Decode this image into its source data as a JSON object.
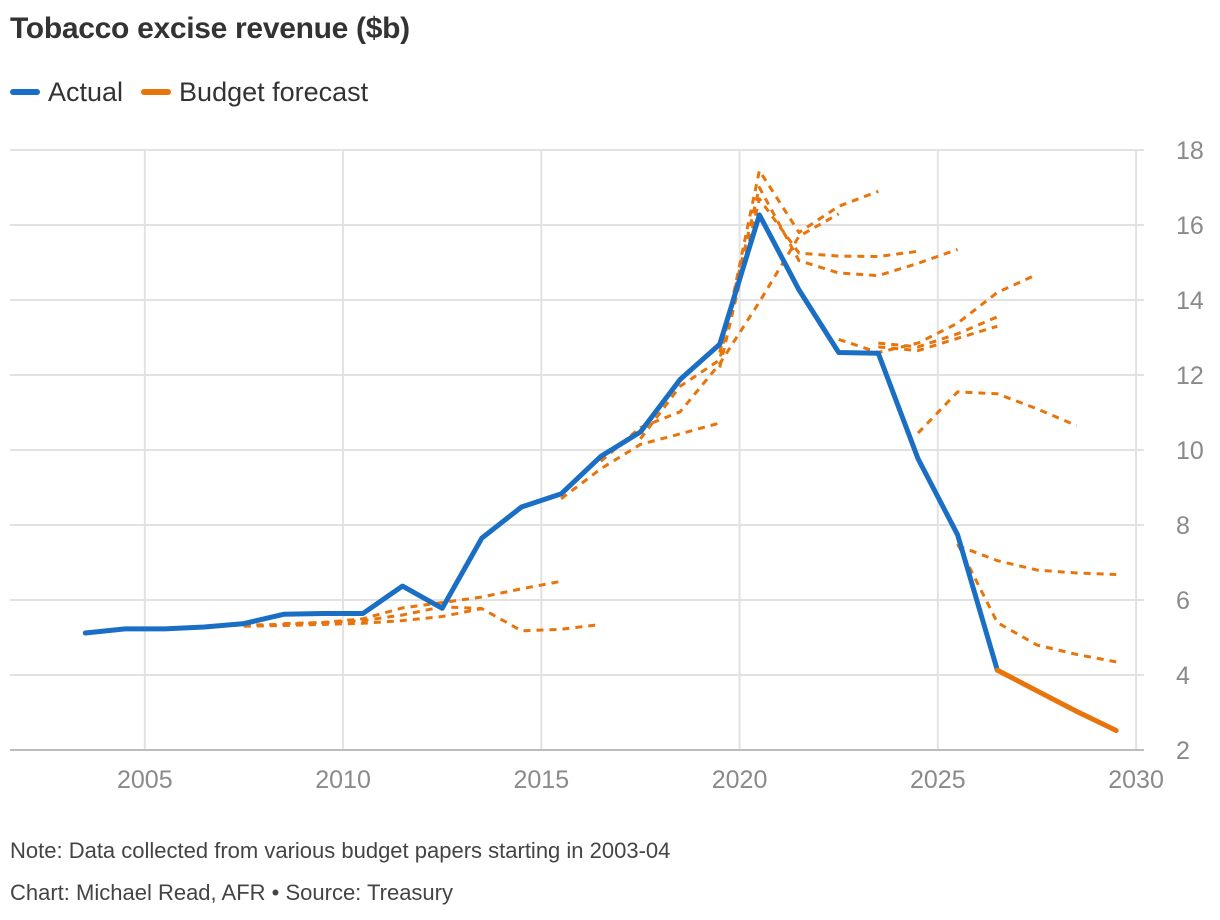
{
  "title": "Tobacco excise revenue ($b)",
  "legend": [
    {
      "label": "Actual",
      "color": "#1a6fc4"
    },
    {
      "label": "Budget forecast",
      "color": "#e8740c"
    }
  ],
  "note": "Note: Data collected from various budget papers starting in 2003-04",
  "credit": "Chart: Michael Read, AFR • Source: Treasury",
  "chart_data": {
    "type": "line",
    "title": "Tobacco excise revenue ($b)",
    "xlabel": "",
    "ylabel": "",
    "xlim": [
      2001.6,
      2030.2
    ],
    "ylim": [
      2,
      18
    ],
    "x_ticks": [
      2005,
      2010,
      2015,
      2020,
      2025,
      2030
    ],
    "y_ticks": [
      2,
      4,
      6,
      8,
      10,
      12,
      14,
      16,
      18
    ],
    "y_axis_side": "right",
    "grid": true,
    "legend_position": "top-left",
    "series": [
      {
        "name": "Actual",
        "color": "#1a6fc4",
        "style": "solid",
        "points": [
          [
            2003.5,
            5.12
          ],
          [
            2004.5,
            5.23
          ],
          [
            2005.5,
            5.23
          ],
          [
            2006.5,
            5.28
          ],
          [
            2007.5,
            5.37
          ],
          [
            2008.5,
            5.62
          ],
          [
            2009.5,
            5.64
          ],
          [
            2010.5,
            5.64
          ],
          [
            2011.5,
            6.37
          ],
          [
            2012.5,
            5.78
          ],
          [
            2013.5,
            7.65
          ],
          [
            2014.5,
            8.48
          ],
          [
            2015.5,
            8.83
          ],
          [
            2016.5,
            9.83
          ],
          [
            2017.5,
            10.48
          ],
          [
            2018.5,
            11.88
          ],
          [
            2019.5,
            12.82
          ],
          [
            2020.5,
            16.27
          ],
          [
            2021.5,
            14.27
          ],
          [
            2022.5,
            12.6
          ],
          [
            2023.5,
            12.58
          ],
          [
            2024.5,
            9.77
          ],
          [
            2025.5,
            7.74
          ],
          [
            2026.5,
            4.13
          ]
        ]
      },
      {
        "name": "Budget forecast",
        "color": "#e8740c",
        "style": "solid",
        "points": [
          [
            2026.5,
            4.13
          ],
          [
            2027.5,
            3.58
          ],
          [
            2028.5,
            3.03
          ],
          [
            2029.5,
            2.52
          ]
        ]
      }
    ],
    "forecast_vintages": [
      {
        "color": "#e8740c",
        "style": "dashed",
        "points": [
          [
            2006.5,
            5.3
          ],
          [
            2007.5,
            5.33
          ],
          [
            2008.5,
            5.35
          ],
          [
            2009.5,
            5.4
          ],
          [
            2010.5,
            5.5
          ],
          [
            2011.5,
            5.79
          ],
          [
            2012.5,
            5.93
          ],
          [
            2013.5,
            6.08
          ],
          [
            2014.5,
            6.3
          ],
          [
            2015.5,
            6.5
          ]
        ]
      },
      {
        "color": "#e8740c",
        "style": "dashed",
        "points": [
          [
            2008.5,
            5.37
          ],
          [
            2009.5,
            5.4
          ],
          [
            2010.5,
            5.45
          ],
          [
            2011.5,
            5.6
          ],
          [
            2012.5,
            5.82
          ],
          [
            2013.5,
            5.77
          ],
          [
            2014.5,
            5.18
          ],
          [
            2015.5,
            5.22
          ],
          [
            2016.5,
            5.35
          ]
        ]
      },
      {
        "color": "#e8740c",
        "style": "dashed",
        "points": [
          [
            2007.5,
            5.3
          ],
          [
            2008.5,
            5.32
          ],
          [
            2009.5,
            5.35
          ],
          [
            2010.5,
            5.38
          ],
          [
            2011.5,
            5.45
          ],
          [
            2012.5,
            5.56
          ],
          [
            2013.5,
            5.77
          ]
        ]
      },
      {
        "color": "#e8740c",
        "style": "dashed",
        "points": [
          [
            2015.5,
            8.7
          ],
          [
            2016.5,
            9.5
          ],
          [
            2017.5,
            10.15
          ],
          [
            2018.5,
            10.43
          ],
          [
            2019.5,
            10.72
          ]
        ]
      },
      {
        "color": "#e8740c",
        "style": "dashed",
        "points": [
          [
            2016.5,
            9.7
          ],
          [
            2017.5,
            10.6
          ],
          [
            2018.5,
            11.02
          ],
          [
            2019.5,
            12.3
          ],
          [
            2020.5,
            13.95
          ],
          [
            2021.5,
            15.7
          ],
          [
            2022.5,
            16.3
          ]
        ]
      },
      {
        "color": "#e8740c",
        "style": "dashed",
        "points": [
          [
            2017.5,
            10.3
          ],
          [
            2018.5,
            11.7
          ],
          [
            2019.5,
            12.4
          ],
          [
            2020.5,
            17.45
          ],
          [
            2021.5,
            15.8
          ],
          [
            2022.5,
            16.5
          ],
          [
            2023.5,
            16.9
          ]
        ]
      },
      {
        "color": "#e8740c",
        "style": "dashed",
        "points": [
          [
            2019.5,
            12.6
          ],
          [
            2020.5,
            17.0
          ],
          [
            2021.5,
            15.05
          ],
          [
            2022.5,
            14.72
          ],
          [
            2023.5,
            14.65
          ],
          [
            2024.5,
            14.98
          ],
          [
            2025.5,
            15.35
          ]
        ]
      },
      {
        "color": "#e8740c",
        "style": "dashed",
        "points": [
          [
            2019.5,
            12.2
          ],
          [
            2020.5,
            16.7
          ],
          [
            2021.5,
            15.25
          ],
          [
            2022.5,
            15.17
          ],
          [
            2023.5,
            15.16
          ],
          [
            2024.5,
            15.3
          ]
        ]
      },
      {
        "color": "#e8740c",
        "style": "dashed",
        "points": [
          [
            2022.5,
            12.95
          ],
          [
            2023.5,
            12.6
          ],
          [
            2024.5,
            12.85
          ],
          [
            2025.5,
            13.38
          ],
          [
            2026.5,
            14.2
          ],
          [
            2027.5,
            14.68
          ]
        ]
      },
      {
        "color": "#e8740c",
        "style": "dashed",
        "points": [
          [
            2023.5,
            12.75
          ],
          [
            2024.5,
            12.65
          ],
          [
            2025.5,
            12.98
          ],
          [
            2026.5,
            13.3
          ]
        ]
      },
      {
        "color": "#e8740c",
        "style": "dashed",
        "points": [
          [
            2023.5,
            12.85
          ],
          [
            2024.5,
            12.75
          ],
          [
            2025.5,
            13.1
          ],
          [
            2026.5,
            13.55
          ]
        ]
      },
      {
        "color": "#e8740c",
        "style": "dashed",
        "points": [
          [
            2024.5,
            10.45
          ],
          [
            2025.5,
            11.55
          ],
          [
            2026.5,
            11.5
          ],
          [
            2027.5,
            11.1
          ],
          [
            2028.5,
            10.65
          ]
        ]
      },
      {
        "color": "#e8740c",
        "style": "dashed",
        "points": [
          [
            2025.5,
            7.45
          ],
          [
            2026.5,
            7.05
          ],
          [
            2027.5,
            6.8
          ],
          [
            2028.5,
            6.72
          ],
          [
            2029.5,
            6.68
          ]
        ]
      },
      {
        "color": "#e8740c",
        "style": "dashed",
        "points": [
          [
            2025.5,
            7.5
          ],
          [
            2026.5,
            5.4
          ],
          [
            2027.5,
            4.8
          ],
          [
            2028.5,
            4.55
          ],
          [
            2029.5,
            4.35
          ]
        ]
      }
    ]
  }
}
